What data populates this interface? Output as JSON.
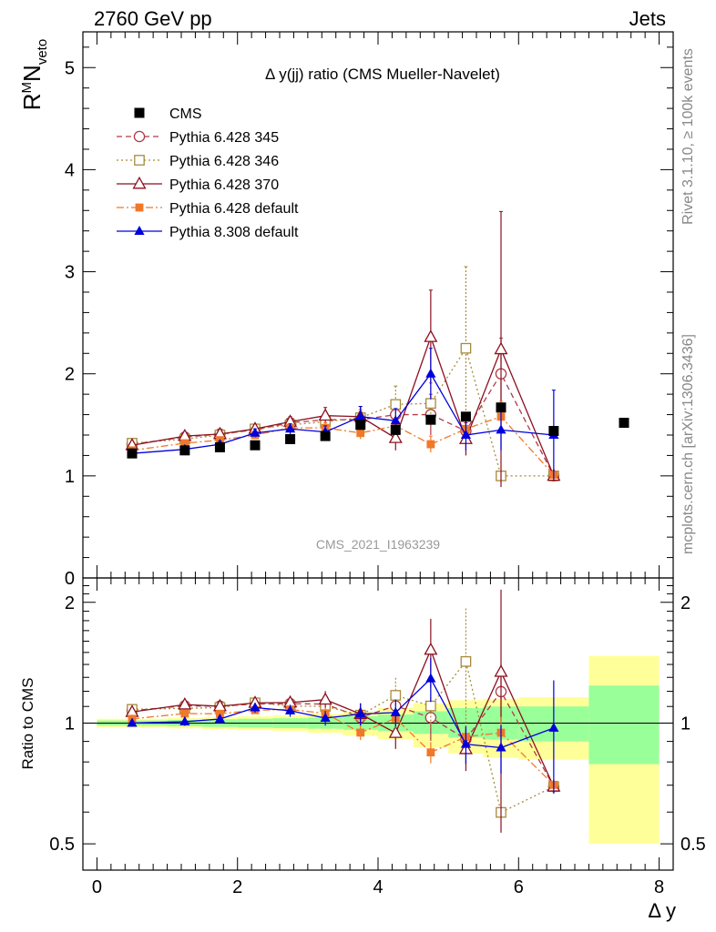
{
  "header": {
    "left": "2760 GeV pp",
    "right": "Jets"
  },
  "side": {
    "rivet": "Rivet 3.1.10, ≥ 100k events",
    "mcplots": "mcplots.cern.ch [arXiv:1306.3436]"
  },
  "chart_data": {
    "type": "scatter",
    "title": "Δ y(jj) ratio (CMS Mueller-Navelet)",
    "watermark": "CMS_2021_I1963239",
    "xlabel": "Δ y",
    "ylabel_main": "R^M N_veto",
    "ylabel_ratio": "Ratio to CMS",
    "xlim": [
      -0.2,
      8.2
    ],
    "ylim_main": [
      0,
      5.35
    ],
    "ylim_ratio": [
      0.43,
      2.3
    ],
    "ratio_log_scale": true,
    "x_ticks": [
      "0",
      "2",
      "4",
      "6",
      "8"
    ],
    "y_ticks_main": [
      "0",
      "1",
      "2",
      "3",
      "4",
      "5"
    ],
    "y_ticks_ratio": [
      "0.5",
      "1",
      "2"
    ],
    "data": {
      "name": "CMS",
      "color": "#000000",
      "x": [
        0.5,
        1.25,
        1.75,
        2.25,
        2.75,
        3.25,
        3.75,
        4.25,
        4.75,
        5.25,
        5.75,
        6.5,
        7.5
      ],
      "y": [
        1.22,
        1.25,
        1.28,
        1.3,
        1.36,
        1.39,
        1.5,
        1.45,
        1.55,
        1.58,
        1.67,
        1.44,
        1.52
      ]
    },
    "uncertainty_band": {
      "edges": [
        0,
        1,
        1.5,
        2,
        2.5,
        3,
        3.5,
        4,
        4.5,
        5,
        5.5,
        6,
        7,
        8
      ],
      "inner_lo": [
        0.985,
        0.982,
        0.978,
        0.975,
        0.972,
        0.968,
        0.962,
        0.955,
        0.94,
        0.92,
        0.91,
        0.9,
        0.79
      ],
      "inner_hi": [
        1.015,
        1.018,
        1.022,
        1.025,
        1.028,
        1.032,
        1.04,
        1.05,
        1.07,
        1.09,
        1.1,
        1.1,
        1.24
      ],
      "outer_lo": [
        0.975,
        0.97,
        0.965,
        0.96,
        0.955,
        0.945,
        0.93,
        0.91,
        0.87,
        0.84,
        0.82,
        0.81,
        0.5
      ],
      "outer_hi": [
        1.025,
        1.03,
        1.035,
        1.04,
        1.045,
        1.055,
        1.07,
        1.09,
        1.12,
        1.14,
        1.15,
        1.16,
        1.47
      ]
    },
    "series": [
      {
        "name": "Pythia 6.428 345",
        "color": "#b03a48",
        "marker": "circle-open",
        "line": "dashed",
        "x": [
          0.5,
          1.25,
          1.75,
          2.25,
          2.75,
          3.25,
          3.75,
          4.25,
          4.75,
          5.25,
          5.75,
          6.5
        ],
        "y": [
          1.31,
          1.38,
          1.41,
          1.45,
          1.52,
          1.55,
          1.55,
          1.6,
          1.6,
          1.44,
          2.0,
          1.0
        ],
        "err": [
          0.03,
          0.03,
          0.03,
          0.04,
          0.05,
          0.06,
          0.08,
          0.12,
          0.2,
          0.12,
          0.35,
          0.0
        ]
      },
      {
        "name": "Pythia 6.428 346",
        "color": "#a88a3a",
        "marker": "square-open",
        "line": "dotted",
        "x": [
          0.5,
          1.25,
          1.75,
          2.25,
          2.75,
          3.25,
          3.75,
          4.25,
          4.75,
          5.25,
          5.75,
          6.5
        ],
        "y": [
          1.32,
          1.36,
          1.4,
          1.46,
          1.5,
          1.53,
          1.57,
          1.7,
          1.71,
          2.25,
          1.0,
          1.0
        ],
        "err": [
          0.03,
          0.03,
          0.03,
          0.04,
          0.05,
          0.06,
          0.08,
          0.18,
          0.2,
          0.8,
          0.0,
          0.0
        ]
      },
      {
        "name": "Pythia 6.428 370",
        "color": "#8b1020",
        "marker": "triangle-open",
        "line": "solid",
        "x": [
          0.5,
          1.25,
          1.75,
          2.25,
          2.75,
          3.25,
          3.75,
          4.25,
          4.75,
          5.25,
          5.75,
          6.5
        ],
        "y": [
          1.3,
          1.39,
          1.41,
          1.46,
          1.53,
          1.59,
          1.58,
          1.37,
          2.36,
          1.36,
          2.24,
          1.0
        ],
        "err": [
          0.03,
          0.03,
          0.03,
          0.04,
          0.05,
          0.08,
          0.1,
          0.12,
          0.46,
          0.16,
          1.35,
          0.0
        ]
      },
      {
        "name": "Pythia 6.428 default",
        "color": "#f07828",
        "marker": "square-filled",
        "line": "dashdot",
        "x": [
          0.5,
          1.25,
          1.75,
          2.25,
          2.75,
          3.25,
          3.75,
          4.25,
          4.75,
          5.25,
          5.75,
          6.5
        ],
        "y": [
          1.25,
          1.32,
          1.35,
          1.4,
          1.47,
          1.47,
          1.42,
          1.49,
          1.31,
          1.46,
          1.58,
          1.01
        ],
        "err": [
          0.02,
          0.03,
          0.03,
          0.03,
          0.04,
          0.05,
          0.06,
          0.08,
          0.08,
          0.1,
          0.15,
          0.0
        ]
      },
      {
        "name": "Pythia 8.308 default",
        "color": "#0000dd",
        "marker": "triangle-filled",
        "line": "solid",
        "x": [
          0.5,
          1.25,
          1.75,
          2.25,
          2.75,
          3.25,
          3.75,
          4.25,
          4.75,
          5.25,
          5.75,
          6.5
        ],
        "y": [
          1.22,
          1.26,
          1.31,
          1.42,
          1.46,
          1.43,
          1.58,
          1.54,
          2.0,
          1.4,
          1.45,
          1.4
        ],
        "err": [
          0.02,
          0.03,
          0.03,
          0.04,
          0.05,
          0.06,
          0.1,
          0.12,
          0.25,
          0.15,
          0.2,
          0.44
        ]
      }
    ]
  }
}
